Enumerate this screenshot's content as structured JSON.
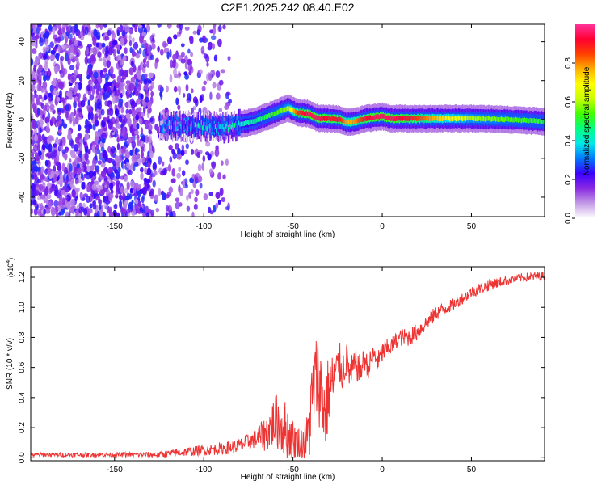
{
  "title": "C2E1.2025.242.08.40.E02",
  "chart_data": [
    {
      "type": "heatmap",
      "xlabel": "Height of straight line (km)",
      "ylabel": "Frequency (Hz)",
      "xlim": [
        -197,
        91
      ],
      "ylim": [
        -50,
        49
      ],
      "x_ticks": [
        -150,
        -100,
        -50,
        0,
        50
      ],
      "y_ticks": [
        -40,
        -20,
        0,
        20,
        40
      ],
      "grid": false,
      "colorbar": {
        "label": "Normalized spectral amplitude",
        "range": [
          0,
          1
        ],
        "ticks": [
          "0.0",
          "0.2",
          "0.4",
          "0.6",
          "0.8"
        ],
        "tick_values": [
          0.0,
          0.2,
          0.4,
          0.6,
          0.8
        ],
        "colors": [
          "#ffffff",
          "#c49be6",
          "#8a2be2",
          "#3b00ff",
          "#0078ff",
          "#00e8e8",
          "#00ff80",
          "#40ff00",
          "#c8ff00",
          "#ffff00",
          "#ffb000",
          "#ff4000",
          "#ff0033",
          "#ff3399"
        ]
      },
      "ridge": {
        "x": [
          -125,
          -115,
          -105,
          -95,
          -88,
          -80,
          -72,
          -65,
          -58,
          -53,
          -48,
          -42,
          -36,
          -30,
          -24,
          -20,
          -15,
          -10,
          -5,
          0,
          5,
          15,
          30,
          50,
          70,
          91
        ],
        "freq": [
          -3,
          -3.5,
          -3.5,
          -4,
          -4,
          -2.5,
          -1,
          1.5,
          4,
          6,
          3.5,
          3,
          0.5,
          0.5,
          0,
          -1.5,
          -1,
          0.5,
          1,
          1.5,
          0.5,
          0.5,
          0.5,
          0.5,
          0,
          -1
        ],
        "amplitude": [
          0.25,
          0.3,
          0.35,
          0.35,
          0.35,
          0.4,
          0.45,
          0.5,
          0.55,
          0.6,
          0.85,
          0.95,
          0.95,
          0.9,
          0.9,
          0.75,
          0.8,
          0.9,
          0.95,
          0.95,
          0.95,
          0.9,
          0.75,
          0.6,
          0.55,
          0.5
        ]
      },
      "noise_region": [
        -197,
        -85
      ]
    },
    {
      "type": "line",
      "xlabel": "Height of straight line (km)",
      "ylabel": "SNR (10 * v/v)",
      "y_multiplier": "(x10",
      "y_multiplier_exp": "4",
      "y_multiplier_close": ")",
      "xlim": [
        -197,
        91
      ],
      "ylim": [
        -0.02,
        1.27
      ],
      "x_ticks": [
        -150,
        -100,
        -50,
        0,
        50
      ],
      "y_ticks": [
        "0.0",
        "0.2",
        "0.4",
        "0.6",
        "0.8",
        "1.0",
        "1.2"
      ],
      "y_tick_values": [
        0.0,
        0.2,
        0.4,
        0.6,
        0.8,
        1.0,
        1.2
      ],
      "grid": false,
      "line_color": "#ee3333",
      "series": [
        {
          "x": [
            -197,
            -150,
            -125,
            -110,
            -100,
            -90,
            -80,
            -72,
            -65,
            -60,
            -55,
            -50,
            -46,
            -42,
            -40,
            -38,
            -36,
            -34,
            -32,
            -30,
            -28,
            -26,
            -24,
            -22,
            -20,
            -18,
            -15,
            -12,
            -10,
            -8,
            -5,
            -2,
            0,
            5,
            10,
            15,
            20,
            25,
            30,
            40,
            50,
            60,
            70,
            80,
            91
          ],
          "y": [
            0.02,
            0.02,
            0.02,
            0.04,
            0.05,
            0.06,
            0.08,
            0.12,
            0.16,
            0.25,
            0.2,
            0.12,
            0.08,
            0.12,
            0.3,
            0.5,
            0.55,
            0.42,
            0.3,
            0.45,
            0.5,
            0.55,
            0.62,
            0.58,
            0.66,
            0.55,
            0.62,
            0.58,
            0.66,
            0.6,
            0.68,
            0.64,
            0.7,
            0.74,
            0.8,
            0.8,
            0.84,
            0.9,
            0.96,
            1.02,
            1.1,
            1.15,
            1.18,
            1.2,
            1.21
          ],
          "noise_amp": [
            0.015,
            0.015,
            0.02,
            0.03,
            0.035,
            0.04,
            0.05,
            0.06,
            0.12,
            0.18,
            0.2,
            0.14,
            0.12,
            0.18,
            0.3,
            0.28,
            0.3,
            0.3,
            0.3,
            0.25,
            0.2,
            0.18,
            0.15,
            0.15,
            0.12,
            0.12,
            0.1,
            0.1,
            0.08,
            0.08,
            0.08,
            0.08,
            0.08,
            0.06,
            0.06,
            0.06,
            0.06,
            0.05,
            0.05,
            0.04,
            0.04,
            0.04,
            0.03,
            0.03,
            0.03
          ]
        }
      ]
    }
  ]
}
